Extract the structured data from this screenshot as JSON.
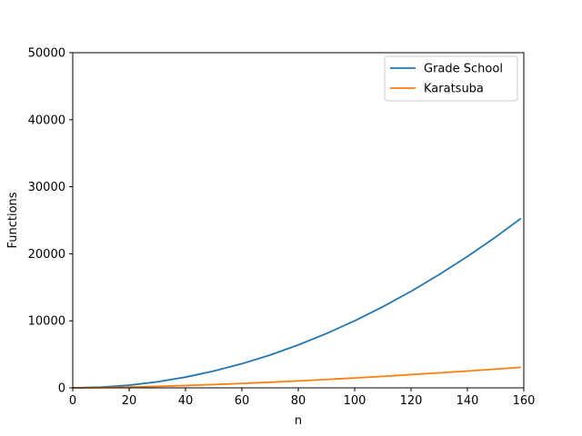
{
  "chart_data": {
    "type": "line",
    "xlabel": "n",
    "ylabel": "Functions",
    "xlim": [
      0,
      160
    ],
    "ylim": [
      0,
      50000
    ],
    "xticks": [
      0,
      20,
      40,
      60,
      80,
      100,
      120,
      140,
      160
    ],
    "yticks": [
      0,
      10000,
      20000,
      30000,
      40000,
      50000
    ],
    "grid": false,
    "legend_position": "top-right",
    "x": [
      0,
      10,
      20,
      30,
      40,
      50,
      60,
      70,
      80,
      90,
      100,
      110,
      120,
      130,
      140,
      150,
      159
    ],
    "series": [
      {
        "name": "Grade School",
        "color": "#1f77b4",
        "values": [
          0,
          100,
          400,
          900,
          1600,
          2500,
          3600,
          4900,
          6400,
          8100,
          10000,
          12100,
          14400,
          16900,
          19600,
          22500,
          25281
        ]
      },
      {
        "name": "Karatsuba",
        "color": "#ff7f0e",
        "values": [
          0,
          38,
          115,
          218,
          345,
          493,
          657,
          841,
          1038,
          1249,
          1476,
          1715,
          1970,
          2232,
          2511,
          2798,
          3062
        ]
      }
    ]
  }
}
